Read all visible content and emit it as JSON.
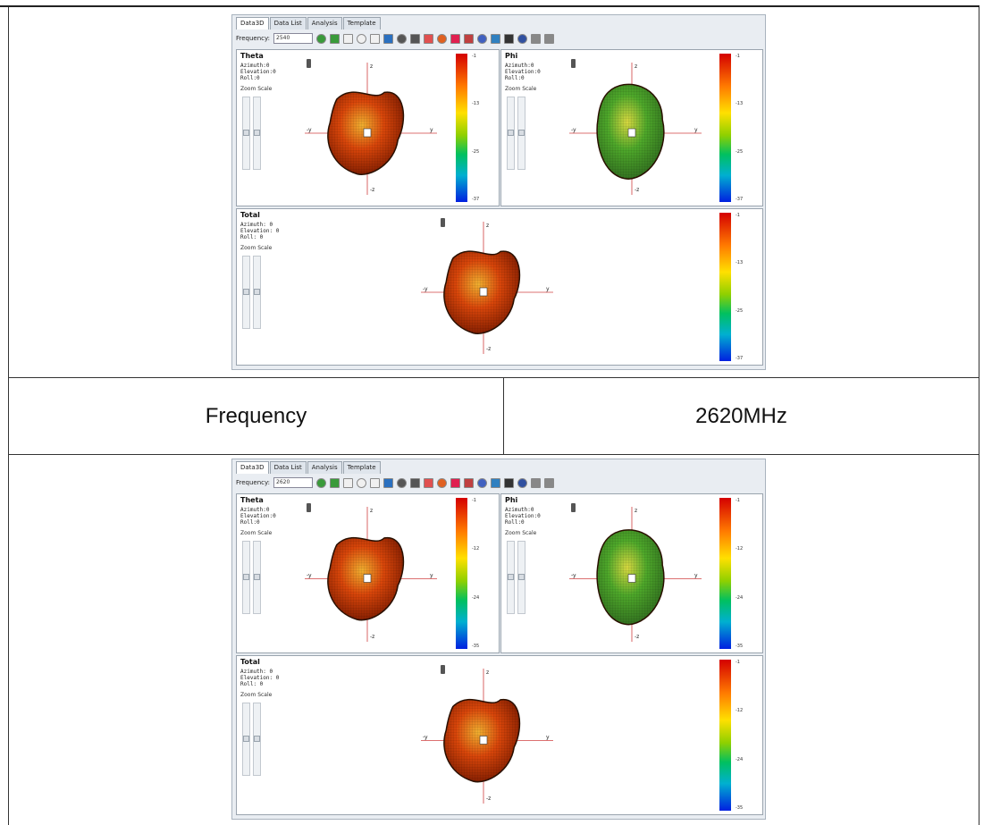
{
  "table": {
    "frequency_label": "Frequency",
    "frequency_value": "2620MHz"
  },
  "app": {
    "tabs": [
      "Data3D",
      "Data List",
      "Analysis",
      "Template"
    ],
    "frequency_label": "Frequency:",
    "panel_top": {
      "frequency_selected": "2540",
      "panes": {
        "theta": {
          "title": "Theta",
          "info": [
            "Azimuth:0",
            "Elevation:0",
            "Roll:0"
          ],
          "zoom_label": "Zoom Scale",
          "ticks": [
            "-1",
            "-13",
            "-25",
            "-37"
          ]
        },
        "phi": {
          "title": "Phi",
          "info": [
            "Azimuth:0",
            "Elevation:0",
            "Roll:0"
          ],
          "zoom_label": "Zoom Scale",
          "ticks": [
            "-1",
            "-13",
            "-25",
            "-37"
          ]
        },
        "total": {
          "title": "Total",
          "info": [
            "Azimuth: 0",
            "Elevation: 0",
            "Roll: 0"
          ],
          "zoom_label": "Zoom Scale",
          "ticks": [
            "-1",
            "-13",
            "-25",
            "-37"
          ]
        }
      }
    },
    "panel_bottom": {
      "frequency_selected": "2620",
      "panes": {
        "theta": {
          "title": "Theta",
          "info": [
            "Azimuth:0",
            "Elevation:0",
            "Roll:0"
          ],
          "zoom_label": "Zoom Scale",
          "ticks": [
            "-1",
            "-12",
            "-24",
            "-35"
          ]
        },
        "phi": {
          "title": "Phi",
          "info": [
            "Azimuth:0",
            "Elevation:0",
            "Roll:0"
          ],
          "zoom_label": "Zoom Scale",
          "ticks": [
            "-1",
            "-12",
            "-24",
            "-35"
          ]
        },
        "total": {
          "title": "Total",
          "info": [
            "Azimuth: 0",
            "Elevation: 0",
            "Roll: 0"
          ],
          "zoom_label": "Zoom Scale",
          "ticks": [
            "-1",
            "-12",
            "-24",
            "-35"
          ]
        }
      }
    },
    "axis_labels": {
      "z": "z",
      "y": "y",
      "neg_y": "-y",
      "neg_z": "-z"
    },
    "colors": {
      "pattern_dark": "#7a1a00",
      "pattern_mid": "#d9460a",
      "pattern_light": "#f0b030",
      "pattern_green": "#4ea82a",
      "axis": "#d04040"
    }
  }
}
